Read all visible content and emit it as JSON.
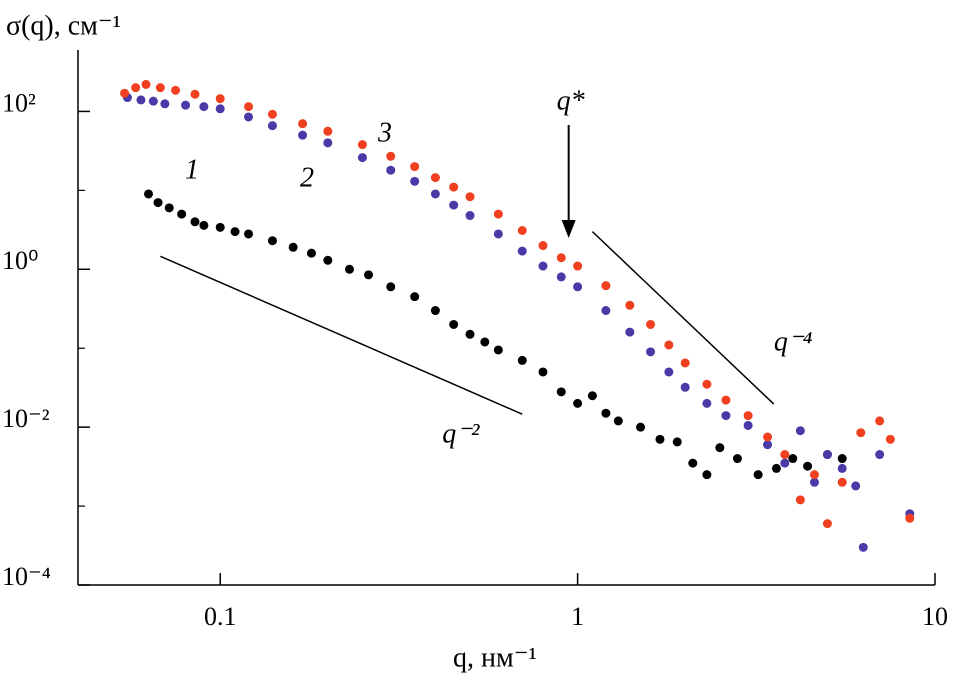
{
  "chart_data": {
    "type": "scatter",
    "y_label": "σ(q), см⁻¹",
    "x_label": "q, нм⁻¹",
    "xlog": true,
    "ylog": true,
    "xlim": [
      0.04,
      10
    ],
    "ylim": [
      0.0001,
      600
    ],
    "xticks": [
      0.1,
      1,
      10
    ],
    "yticks": [
      {
        "value": 0.0001,
        "label": "10⁻⁴"
      },
      {
        "value": 0.01,
        "label": "10⁻²"
      },
      {
        "value": 1,
        "label": "10⁰"
      },
      {
        "value": 100,
        "label": "10²"
      }
    ],
    "yminorticks": [
      0.001,
      0.1,
      10
    ],
    "series": [
      {
        "name": "1",
        "color": "#000000",
        "x": [
          0.063,
          0.067,
          0.072,
          0.078,
          0.085,
          0.09,
          0.1,
          0.11,
          0.12,
          0.14,
          0.16,
          0.18,
          0.2,
          0.23,
          0.26,
          0.3,
          0.35,
          0.4,
          0.45,
          0.5,
          0.55,
          0.6,
          0.7,
          0.8,
          0.9,
          1.0,
          1.1,
          1.2,
          1.3,
          1.5,
          1.7,
          1.9,
          2.1,
          2.3,
          2.5,
          2.8,
          3.2,
          3.6,
          4.0,
          4.4,
          5.0,
          5.5
        ],
        "values": [
          9,
          7,
          6,
          5,
          4,
          3.6,
          3.4,
          3.0,
          2.8,
          2.3,
          1.9,
          1.6,
          1.3,
          1.0,
          0.85,
          0.6,
          0.45,
          0.3,
          0.2,
          0.15,
          0.12,
          0.095,
          0.07,
          0.05,
          0.028,
          0.02,
          0.025,
          0.015,
          0.012,
          0.01,
          0.007,
          0.0065,
          0.0035,
          0.0025,
          0.0055,
          0.004,
          0.0025,
          0.003,
          0.004,
          0.0032,
          0.0045,
          0.004
        ]
      },
      {
        "name": "2",
        "color": "#4a3aa8",
        "x": [
          0.055,
          0.06,
          0.065,
          0.07,
          0.08,
          0.09,
          0.1,
          0.12,
          0.14,
          0.17,
          0.2,
          0.25,
          0.3,
          0.35,
          0.4,
          0.45,
          0.5,
          0.6,
          0.7,
          0.8,
          0.9,
          1.0,
          1.2,
          1.4,
          1.6,
          1.8,
          2.0,
          2.3,
          2.6,
          3.0,
          3.4,
          3.8,
          4.2,
          4.6,
          5.0,
          5.5,
          6.0,
          6.3,
          7.0,
          8.5
        ],
        "values": [
          150,
          140,
          135,
          125,
          120,
          115,
          108,
          85,
          66,
          50,
          40,
          26,
          18,
          13,
          9,
          6.5,
          4.8,
          2.8,
          1.7,
          1.1,
          0.8,
          0.6,
          0.3,
          0.16,
          0.09,
          0.05,
          0.032,
          0.02,
          0.014,
          0.0105,
          0.006,
          0.0035,
          0.009,
          0.002,
          0.0045,
          0.003,
          0.0018,
          0.0003,
          0.0045,
          0.0008
        ]
      },
      {
        "name": "3",
        "color": "#f04020",
        "x": [
          0.054,
          0.058,
          0.062,
          0.068,
          0.075,
          0.085,
          0.1,
          0.12,
          0.14,
          0.17,
          0.2,
          0.25,
          0.3,
          0.35,
          0.4,
          0.45,
          0.5,
          0.6,
          0.7,
          0.8,
          0.9,
          1.0,
          1.2,
          1.4,
          1.6,
          1.8,
          2.0,
          2.3,
          2.6,
          3.0,
          3.4,
          3.8,
          4.2,
          4.6,
          5.0,
          5.5,
          6.2,
          7.0,
          7.5,
          8.5
        ],
        "values": [
          170,
          200,
          220,
          200,
          185,
          165,
          145,
          115,
          92,
          70,
          56,
          38,
          27,
          20,
          14.5,
          11,
          8.3,
          5.0,
          3.1,
          2.0,
          1.4,
          1.1,
          0.62,
          0.35,
          0.2,
          0.11,
          0.065,
          0.035,
          0.022,
          0.014,
          0.0075,
          0.0045,
          0.0012,
          0.0025,
          0.0006,
          0.002,
          0.0085,
          0.012,
          0.007,
          0.0007
        ]
      }
    ],
    "guides": [
      {
        "label": "q⁻²",
        "x": [
          0.068,
          0.7
        ],
        "y": [
          1.46,
          0.0146
        ]
      },
      {
        "label": "q⁻⁴",
        "x": [
          1.1,
          3.54
        ],
        "y": [
          3.0,
          0.0196
        ]
      }
    ],
    "marker": {
      "label": "q*",
      "x": 0.944
    }
  }
}
